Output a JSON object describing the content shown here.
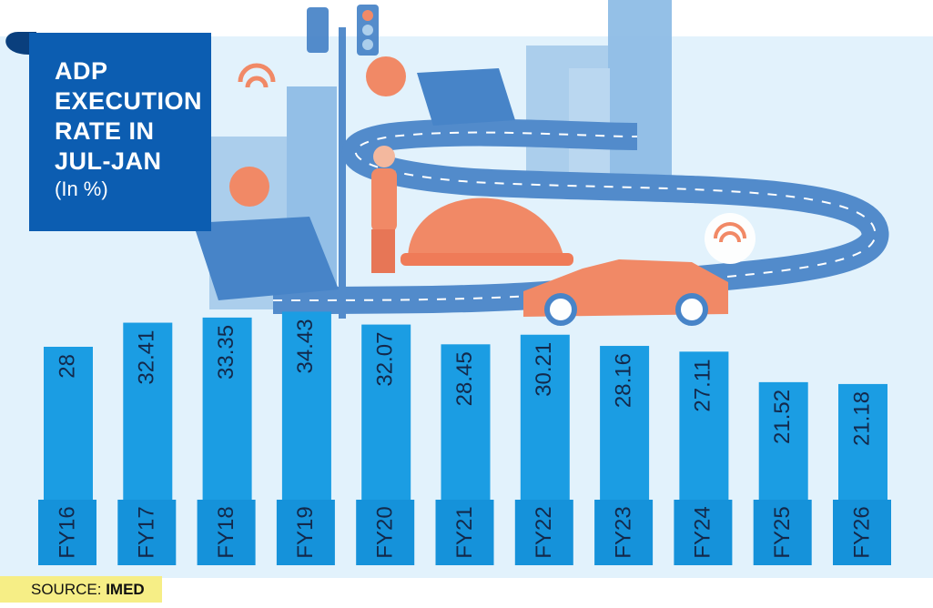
{
  "chart_data": {
    "type": "bar",
    "title": "ADP EXECUTION RATE IN JUL-JAN",
    "subtitle": "(In %)",
    "source_label": "SOURCE:",
    "source": "IMED",
    "categories": [
      "FY16",
      "FY17",
      "FY18",
      "FY19",
      "FY20",
      "FY21",
      "FY22",
      "FY23",
      "FY24",
      "FY25",
      "FY26"
    ],
    "values": [
      28,
      32.41,
      33.35,
      34.43,
      32.07,
      28.45,
      30.21,
      28.16,
      27.11,
      21.52,
      21.18
    ],
    "color": "#1b9de3"
  }
}
